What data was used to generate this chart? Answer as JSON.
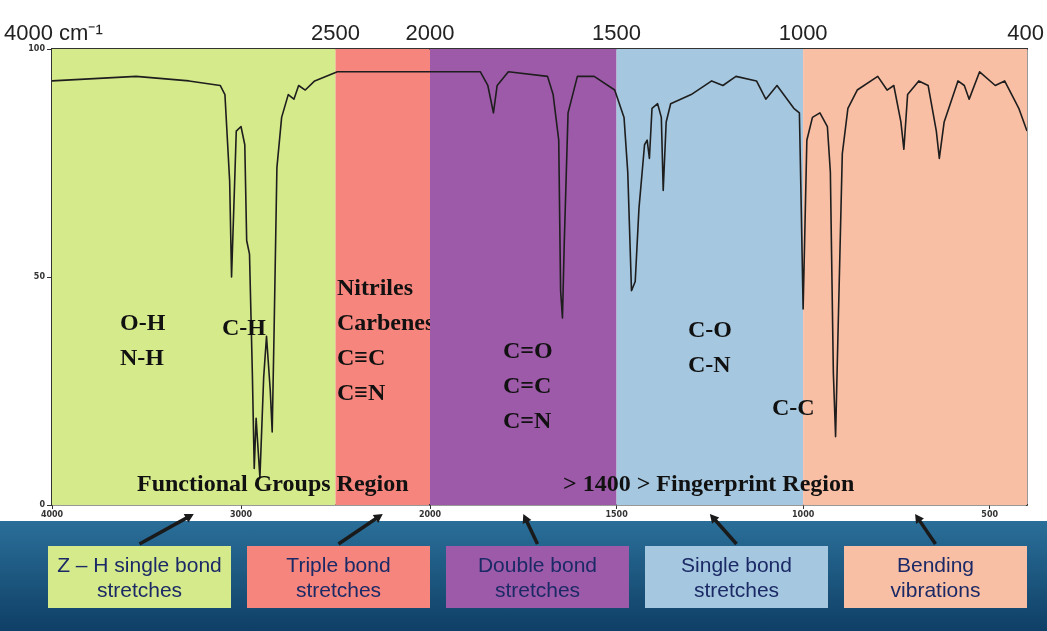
{
  "chart_data": [
    {
      "type": "line",
      "marker": "none",
      "line_style": "solid",
      "xlim": [
        4000,
        2000
      ],
      "xticks": [
        4000,
        3000
      ],
      "x2lim": [
        4000,
        2000
      ],
      "x2ticks": [
        {
          "value": 4000,
          "label": "4000 cm⁻¹"
        },
        2500
      ],
      "ylim": [
        0,
        100
      ],
      "yticks": [
        0,
        50,
        100
      ],
      "series": [
        {
          "color": "#1e1e1e",
          "x": [
            4000,
            3555,
            3275,
            3110,
            3085,
            3060,
            3050,
            3035,
            3025,
            3000,
            2980,
            2970,
            2955,
            2940,
            2930,
            2920,
            2900,
            2880,
            2865,
            2845,
            2835,
            2825,
            2810,
            2785,
            2750,
            2720,
            2695,
            2660,
            2610,
            2490,
            2150,
            2000
          ],
          "values": [
            93,
            94,
            93,
            92,
            90,
            71,
            50,
            69,
            82,
            83,
            79,
            58,
            55,
            29,
            8,
            19,
            6,
            28,
            37,
            25,
            16,
            38,
            74,
            85,
            90,
            89,
            92,
            91,
            93,
            95,
            95,
            95
          ]
        }
      ],
      "bands": [
        {
          "axis": "x",
          "from": 4000,
          "to": 2500,
          "label": "Z – H single bond stretches",
          "color": "#d5ea8b"
        },
        {
          "axis": "x",
          "from": 2500,
          "to": 2000,
          "label": "Triple bond stretches",
          "color": "#f5857d"
        }
      ],
      "annotations": [
        "O-H\nN-H",
        "C-H",
        "Nitriles\nCarbenes\nC≡C\nC≡N",
        "Functional Groups Region"
      ]
    },
    {
      "type": "line",
      "marker": "none",
      "line_style": "solid",
      "tick_labels": "x",
      "xlim": [
        2000,
        400
      ],
      "xticks": [
        2000,
        1500,
        1000,
        500
      ],
      "x2lim": [
        2000,
        400
      ],
      "x2ticks": [
        2000,
        1500,
        1000,
        400
      ],
      "ylim": [
        0,
        100
      ],
      "series": [
        {
          "color": "#1e1e1e",
          "x": [
            2000,
            1980,
            1865,
            1845,
            1830,
            1820,
            1790,
            1685,
            1670,
            1655,
            1650,
            1645,
            1640,
            1630,
            1605,
            1560,
            1505,
            1480,
            1470,
            1460,
            1450,
            1440,
            1425,
            1418,
            1412,
            1405,
            1390,
            1380,
            1375,
            1367,
            1355,
            1300,
            1245,
            1215,
            1180,
            1125,
            1100,
            1070,
            1025,
            1010,
            1005,
            1000,
            990,
            975,
            955,
            935,
            927,
            919,
            913,
            907,
            895,
            880,
            855,
            800,
            775,
            757,
            738,
            730,
            720,
            690,
            665,
            643,
            635,
            622,
            585,
            568,
            555,
            527,
            485,
            460,
            422,
            400
          ],
          "values": [
            95,
            95,
            95,
            92,
            86,
            92,
            95,
            94,
            90,
            80,
            47,
            41,
            58,
            86,
            94,
            94,
            91,
            85,
            73,
            47,
            49,
            65,
            79,
            80,
            76,
            87,
            88,
            85,
            69,
            84,
            88,
            90,
            93,
            92,
            94,
            93,
            89,
            92,
            87,
            86,
            65,
            43,
            80,
            85,
            86,
            83,
            73,
            29,
            15,
            36,
            77,
            87,
            91,
            94,
            91,
            92,
            84,
            78,
            90,
            93,
            92,
            82,
            76,
            84,
            93,
            92,
            89,
            95,
            92,
            93,
            87,
            82
          ]
        }
      ],
      "bands": [
        {
          "axis": "x",
          "from": 2000,
          "to": 1500,
          "label": "Double bond stretches",
          "color": "#9d5aa8"
        },
        {
          "axis": "x",
          "from": 1500,
          "to": 1000,
          "label": "Single bond stretches",
          "color": "#a5c7df"
        },
        {
          "axis": "x",
          "from": 1000,
          "to": 400,
          "label": "Bending vibrations",
          "color": "#f9bfa4"
        }
      ],
      "annotations": [
        "C=O\nC=C\nC=N",
        "C-O\nC-N",
        "C-C",
        "> 1400 > Fingerprint Region"
      ]
    }
  ]
}
